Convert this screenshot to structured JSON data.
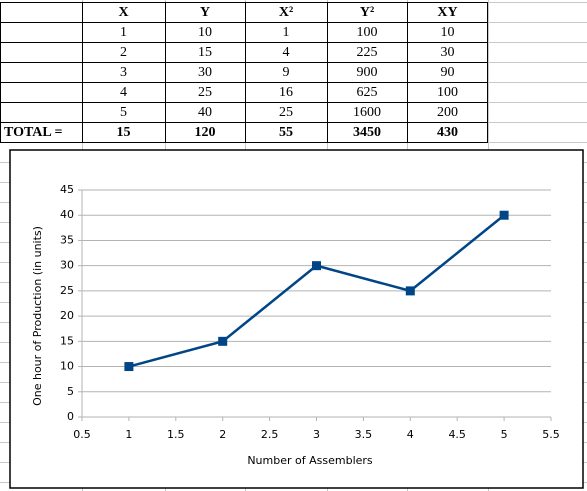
{
  "table": {
    "header": [
      "X",
      "Y",
      "X²",
      "Y²",
      "XY"
    ],
    "rows": [
      [
        1,
        10,
        1,
        100,
        10
      ],
      [
        2,
        15,
        4,
        225,
        30
      ],
      [
        3,
        30,
        9,
        900,
        90
      ],
      [
        4,
        25,
        16,
        625,
        100
      ],
      [
        5,
        40,
        25,
        1600,
        200
      ]
    ],
    "total": {
      "label": "TOTAL =",
      "values": [
        15,
        120,
        55,
        3450,
        430
      ]
    }
  },
  "chart_data": {
    "type": "line",
    "x": [
      1,
      2,
      3,
      4,
      5
    ],
    "values": [
      10,
      15,
      30,
      25,
      40
    ],
    "color": "#004586",
    "xlabel": "Number of Assemblers",
    "ylabel": "One hour of Production (in units)",
    "xlim": [
      0.5,
      5.5
    ],
    "xticks": [
      0.5,
      1,
      1.5,
      2,
      2.5,
      3,
      3.5,
      4,
      4.5,
      5,
      5.5
    ],
    "ylim": [
      0,
      45
    ],
    "yticks": [
      0,
      5,
      10,
      15,
      20,
      25,
      30,
      35,
      40,
      45
    ],
    "grid": true
  }
}
